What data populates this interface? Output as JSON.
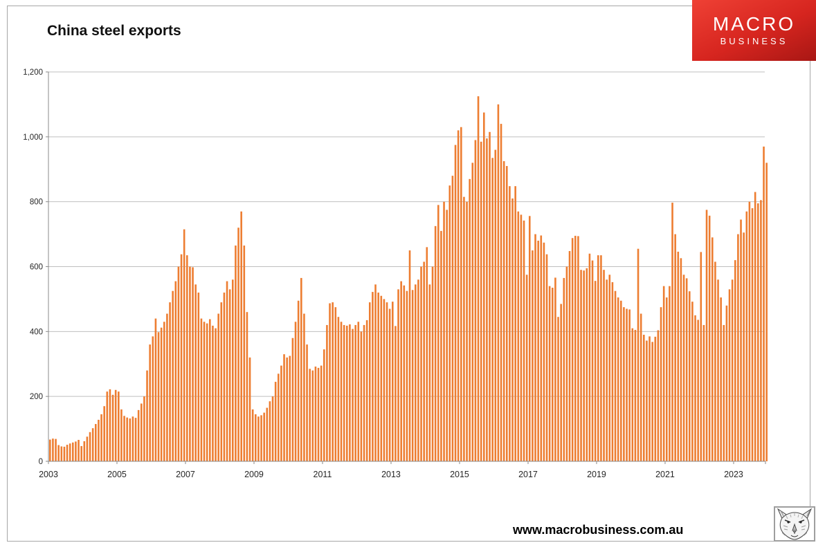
{
  "title": "China steel exports",
  "logo": {
    "line1": "MACRO",
    "line2": "BUSINESS",
    "bg_top": "#ef4135",
    "bg_bottom": "#a81714",
    "text_color": "#ffffff"
  },
  "footer": {
    "url": "www.macrobusiness.com.au"
  },
  "icons": {
    "wolf": "wolf-sketch-logo"
  },
  "chart_data": {
    "type": "bar",
    "title": "China steel exports",
    "frequency": "monthly",
    "start": "2003-01",
    "bar_color": "#ED7D31",
    "grid_color": "#BFBFBF",
    "axis_color": "#8a8a8a",
    "label_color": "#262626",
    "ylim": [
      0,
      1200
    ],
    "ytick_labels": [
      "0",
      "200",
      "400",
      "600",
      "800",
      "1,000",
      "1,200"
    ],
    "ytick_values": [
      0,
      200,
      400,
      600,
      800,
      1000,
      1200
    ],
    "x_start_year": 2003,
    "x_tick_years": [
      "2003",
      "2005",
      "2007",
      "2009",
      "2011",
      "2013",
      "2015",
      "2017",
      "2019",
      "2021",
      "2023"
    ],
    "grid": true,
    "legend": "none",
    "values": [
      67,
      70,
      69,
      50,
      46,
      45,
      51,
      55,
      58,
      61,
      66,
      47,
      62,
      76,
      90,
      102,
      115,
      128,
      145,
      170,
      215,
      222,
      205,
      220,
      215,
      160,
      140,
      135,
      132,
      138,
      134,
      158,
      178,
      200,
      280,
      360,
      385,
      440,
      398,
      412,
      430,
      455,
      490,
      525,
      555,
      600,
      638,
      715,
      635,
      600,
      598,
      545,
      520,
      440,
      430,
      425,
      438,
      418,
      410,
      455,
      490,
      520,
      555,
      530,
      560,
      665,
      720,
      770,
      665,
      460,
      320,
      160,
      145,
      138,
      142,
      150,
      165,
      185,
      200,
      245,
      270,
      295,
      330,
      320,
      325,
      380,
      430,
      495,
      565,
      455,
      360,
      285,
      280,
      292,
      288,
      295,
      345,
      420,
      487,
      490,
      475,
      445,
      430,
      420,
      418,
      422,
      408,
      420,
      430,
      400,
      420,
      435,
      490,
      522,
      545,
      520,
      510,
      500,
      490,
      470,
      492,
      417,
      530,
      555,
      542,
      525,
      650,
      528,
      545,
      560,
      600,
      615,
      660,
      545,
      600,
      725,
      790,
      710,
      800,
      775,
      850,
      880,
      975,
      1020,
      1030,
      815,
      800,
      870,
      920,
      990,
      1125,
      985,
      1075,
      995,
      1015,
      935,
      960,
      1100,
      1040,
      925,
      910,
      848,
      810,
      848,
      770,
      760,
      742,
      575,
      756,
      650,
      700,
      680,
      696,
      674,
      638,
      540,
      535,
      566,
      445,
      485,
      565,
      600,
      648,
      688,
      695,
      694,
      590,
      588,
      595,
      640,
      619,
      556,
      635,
      635,
      590,
      560,
      575,
      552,
      525,
      505,
      495,
      475,
      470,
      468,
      410,
      405,
      655,
      455,
      390,
      372,
      385,
      368,
      384,
      404,
      475,
      540,
      505,
      540,
      797,
      700,
      646,
      626,
      575,
      564,
      524,
      492,
      450,
      436,
      645,
      420,
      775,
      757,
      690,
      615,
      560,
      505,
      420,
      480,
      530,
      560,
      620,
      700,
      745,
      705,
      770,
      800,
      780,
      830,
      795,
      805,
      970,
      920
    ]
  }
}
